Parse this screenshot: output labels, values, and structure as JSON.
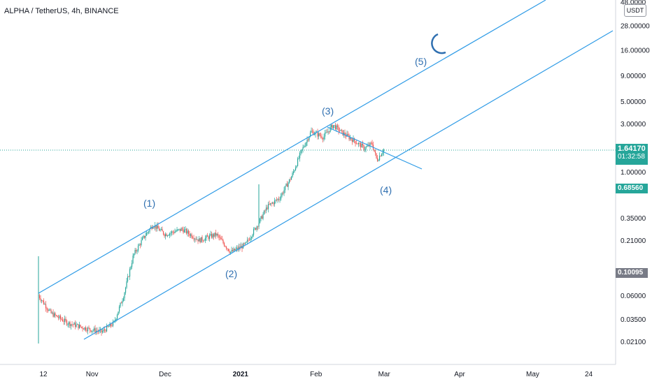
{
  "header": {
    "title": "ALPHA / TetherUS, 4h, BINANCE"
  },
  "currency_badge": "USDT",
  "colors": {
    "up": "#26a69a",
    "down": "#ef5350",
    "trend": "#2e9be6",
    "wave_text": "#2f6fb0",
    "last_price_bg": "#26a69a",
    "level_bg": "#787b86"
  },
  "price_tags": {
    "last_price": "1.64170",
    "countdown": "01:32:58",
    "level_1": "0.68560",
    "level_2": "0.10095"
  },
  "chart_data": {
    "type": "candlestick",
    "symbol": "ALPHA/USDT",
    "interval": "4h",
    "exchange": "BINANCE",
    "y_scale": "log",
    "y_ticks": [
      "48.0000",
      "28.00000",
      "16.00000",
      "9.00000",
      "5.00000",
      "3.00000",
      "1.00000",
      "0.35000",
      "0.21000",
      "0.06000",
      "0.03500",
      "0.02100"
    ],
    "x_ticks": [
      "12",
      "Nov",
      "Dec",
      "2021",
      "Feb",
      "Mar",
      "Apr",
      "May",
      "24"
    ],
    "price_path": [
      {
        "x": "2020-10-10",
        "y": 0.06
      },
      {
        "x": "2020-10-15",
        "y": 0.04
      },
      {
        "x": "2020-10-22",
        "y": 0.032
      },
      {
        "x": "2020-10-30",
        "y": 0.028
      },
      {
        "x": "2020-11-05",
        "y": 0.026
      },
      {
        "x": "2020-11-10",
        "y": 0.032
      },
      {
        "x": "2020-11-14",
        "y": 0.06
      },
      {
        "x": "2020-11-18",
        "y": 0.15
      },
      {
        "x": "2020-11-22",
        "y": 0.22
      },
      {
        "x": "2020-11-26",
        "y": 0.3
      },
      {
        "x": "2020-12-01",
        "y": 0.24
      },
      {
        "x": "2020-12-08",
        "y": 0.27
      },
      {
        "x": "2020-12-15",
        "y": 0.21
      },
      {
        "x": "2020-12-22",
        "y": 0.24
      },
      {
        "x": "2020-12-28",
        "y": 0.16
      },
      {
        "x": "2021-01-03",
        "y": 0.19
      },
      {
        "x": "2021-01-08",
        "y": 0.3
      },
      {
        "x": "2021-01-12",
        "y": 0.45
      },
      {
        "x": "2021-01-17",
        "y": 0.55
      },
      {
        "x": "2021-01-22",
        "y": 0.9
      },
      {
        "x": "2021-01-26",
        "y": 1.6
      },
      {
        "x": "2021-01-30",
        "y": 2.5
      },
      {
        "x": "2021-02-04",
        "y": 2.2
      },
      {
        "x": "2021-02-08",
        "y": 2.9
      },
      {
        "x": "2021-02-12",
        "y": 2.4
      },
      {
        "x": "2021-02-17",
        "y": 2.0
      },
      {
        "x": "2021-02-21",
        "y": 1.7
      },
      {
        "x": "2021-02-24",
        "y": 1.9
      },
      {
        "x": "2021-02-26",
        "y": 1.3
      },
      {
        "x": "2021-03-01",
        "y": 1.7
      }
    ],
    "wave_labels": [
      {
        "label": "(1)",
        "date": "2020-11-25",
        "price": 0.55
      },
      {
        "label": "(2)",
        "date": "2020-12-27",
        "price": 0.11
      },
      {
        "label": "(3)",
        "date": "2021-02-07",
        "price": 4.2
      },
      {
        "label": "(4)",
        "date": "2021-02-27",
        "price": 0.78
      },
      {
        "label": "(5)",
        "date": "2021-03-15",
        "price": 12.0
      }
    ]
  }
}
